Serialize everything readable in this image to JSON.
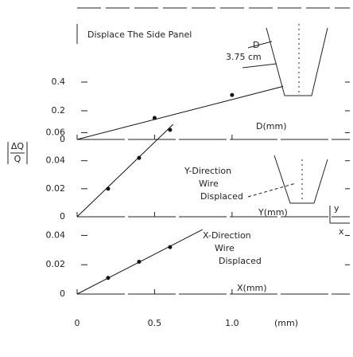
{
  "chart_data": [
    {
      "type": "line",
      "annotations": [
        "Displace The Side Panel",
        "D",
        "3.75 cm"
      ],
      "xlabel": "D(mm)",
      "x": [
        0.5,
        1.0
      ],
      "values": [
        0.15,
        0.31
      ],
      "fit": {
        "x": [
          0,
          1.33
        ],
        "values": [
          0,
          0.37
        ]
      },
      "xlim": [
        0,
        1.75
      ],
      "ylim": [
        0,
        0.9
      ],
      "yticks": [
        0,
        0.2,
        0.4
      ],
      "color": "#111"
    },
    {
      "type": "line",
      "annotations": [
        "Y-Direction",
        "Wire",
        "Displaced",
        "y",
        "x"
      ],
      "xlabel": "Y(mm)",
      "ylabel": {
        "numerator": "ΔQ",
        "denominator": "Q"
      },
      "x": [
        0.2,
        0.4,
        0.6
      ],
      "values": [
        0.02,
        0.042,
        0.062
      ],
      "fit": {
        "x": [
          0,
          0.62
        ],
        "values": [
          0,
          0.066
        ]
      },
      "xlim": [
        0,
        1.75
      ],
      "ylim": [
        0,
        0.066
      ],
      "yticks": [
        0,
        0.02,
        0.04,
        0.06
      ],
      "color": "#111"
    },
    {
      "type": "line",
      "annotations": [
        "X-Direction",
        "Wire",
        "Displaced"
      ],
      "xlabel": "X(mm)",
      "x": [
        0.2,
        0.4,
        0.6
      ],
      "values": [
        0.011,
        0.022,
        0.032
      ],
      "fit": {
        "x": [
          0,
          0.81
        ],
        "values": [
          0,
          0.044
        ]
      },
      "xlim": [
        0,
        1.75
      ],
      "ylim": [
        0,
        0.056
      ],
      "yticks": [
        0,
        0.02,
        0.04
      ],
      "xticks": [
        0,
        0.5,
        {
          "value": 1,
          "label": "1.0"
        }
      ],
      "xunit": "(mm)",
      "color": "#111"
    }
  ]
}
